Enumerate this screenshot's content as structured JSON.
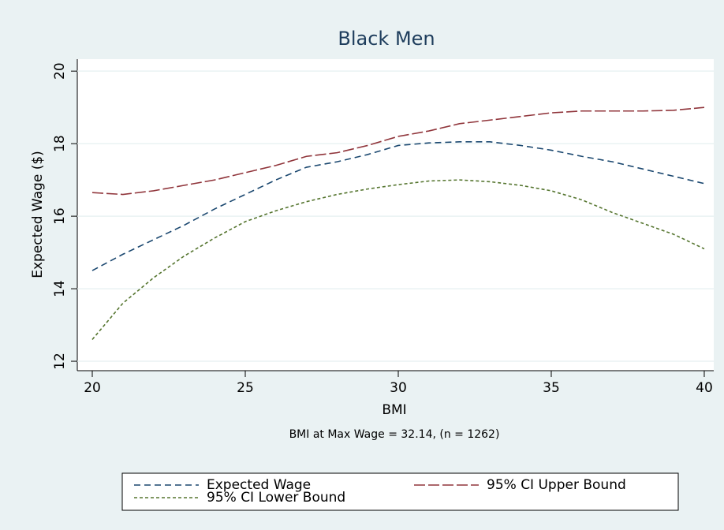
{
  "chart_data": {
    "type": "line",
    "title": "Black Men",
    "x_label": "BMI",
    "y_label": "Expected Wage ($)",
    "note": "BMI at Max Wage = 32.14, (n = 1262)",
    "x": [
      20,
      21,
      22,
      23,
      24,
      25,
      26,
      27,
      28,
      29,
      30,
      31,
      32,
      33,
      34,
      35,
      36,
      37,
      38,
      39,
      40
    ],
    "series": [
      {
        "name": "Expected Wage",
        "color": "#1a476f",
        "dash": "8,5",
        "values": [
          14.5,
          14.95,
          15.35,
          15.75,
          16.2,
          16.6,
          17.0,
          17.35,
          17.5,
          17.7,
          17.95,
          18.02,
          18.05,
          18.05,
          17.95,
          17.82,
          17.65,
          17.5,
          17.3,
          17.1,
          16.9
        ]
      },
      {
        "name": "95% CI Upper Bound",
        "color": "#90353b",
        "dash": "14,4",
        "values": [
          16.65,
          16.6,
          16.7,
          16.85,
          17.0,
          17.2,
          17.4,
          17.65,
          17.75,
          17.95,
          18.2,
          18.35,
          18.55,
          18.65,
          18.75,
          18.85,
          18.9,
          18.9,
          18.9,
          18.92,
          19.0
        ]
      },
      {
        "name": "95% CI Lower Bound",
        "color": "#55752f",
        "dash": "4,3",
        "values": [
          12.6,
          13.6,
          14.3,
          14.9,
          15.4,
          15.85,
          16.15,
          16.4,
          16.6,
          16.75,
          16.87,
          16.97,
          17.0,
          16.95,
          16.85,
          16.7,
          16.45,
          16.1,
          15.8,
          15.5,
          15.1
        ]
      }
    ],
    "xlim": [
      19.51,
      40.31
    ],
    "xticks": [
      20,
      25,
      30,
      35,
      40
    ],
    "ylim": [
      11.74,
      20.33
    ],
    "yticks": [
      12,
      14,
      16,
      18,
      20
    ],
    "grid": true
  }
}
